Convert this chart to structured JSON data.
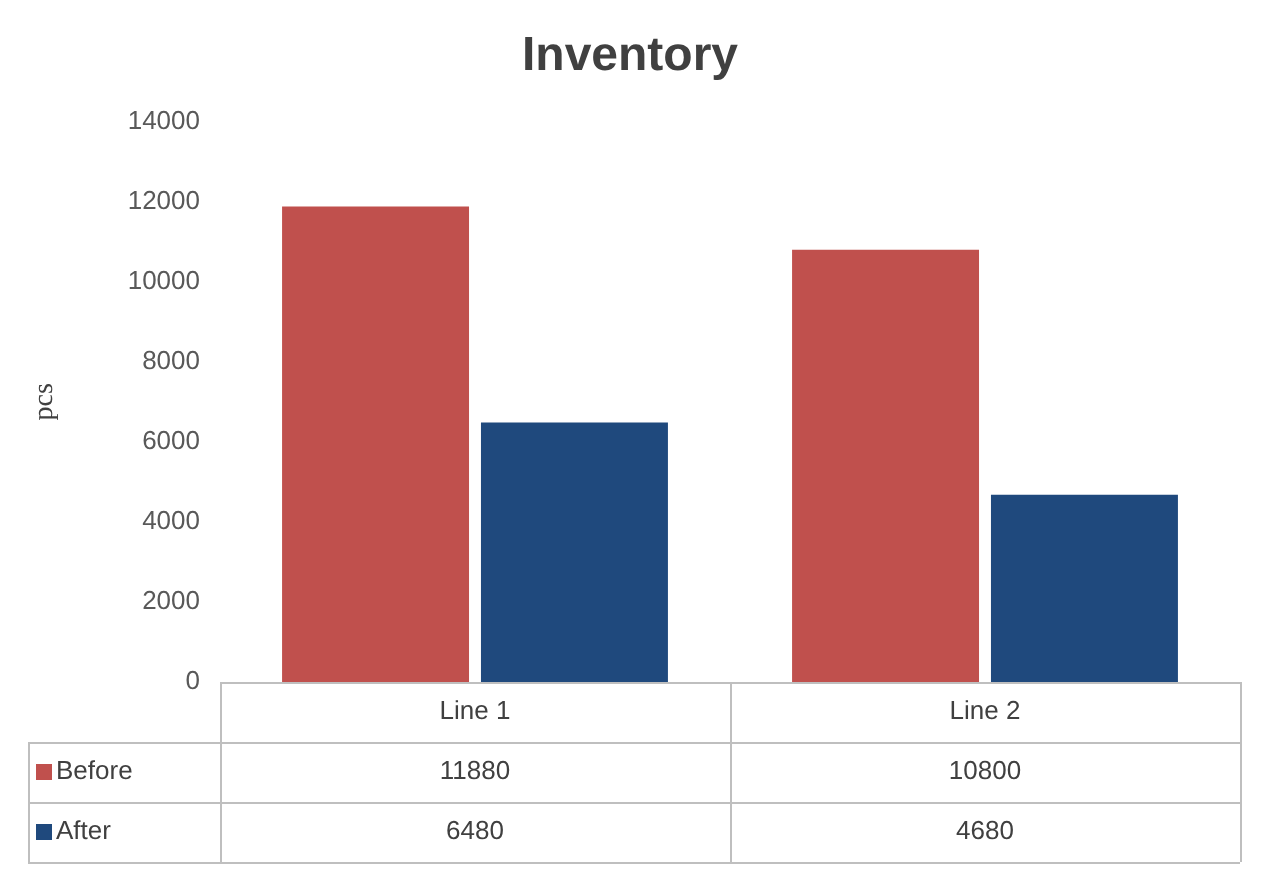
{
  "chart_data": {
    "type": "bar",
    "title": "Inventory",
    "ylabel": "pcs",
    "categories": [
      "Line 1",
      "Line 2"
    ],
    "series": [
      {
        "name": "Before",
        "color": "#c0504d",
        "values": [
          11880,
          10800
        ]
      },
      {
        "name": "After",
        "color": "#1f497d",
        "values": [
          6480,
          4680
        ]
      }
    ],
    "ylim": [
      0,
      14000
    ],
    "yticks": [
      0,
      2000,
      4000,
      6000,
      8000,
      10000,
      12000,
      14000
    ],
    "grid": false,
    "legend": "bottom",
    "data_labels": true
  }
}
